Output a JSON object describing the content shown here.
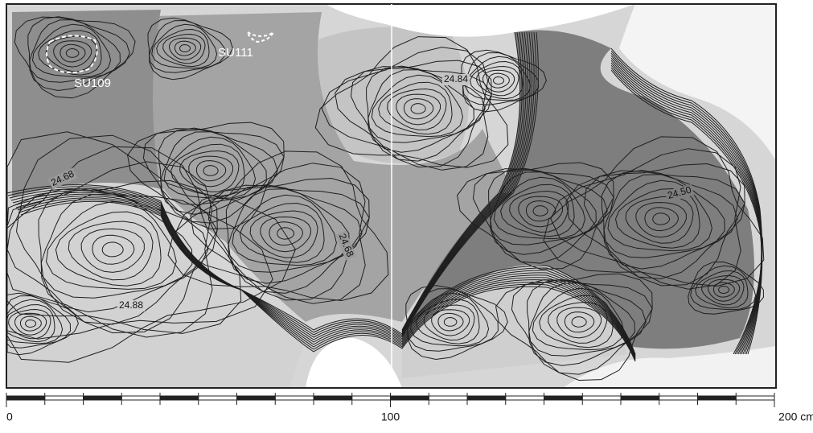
{
  "feature_labels": [
    "SU109",
    "SU111"
  ],
  "elevation_labels": [
    "24.84",
    "24.68",
    "24.68",
    "24.50",
    "24.88"
  ],
  "scale_labels": [
    "0",
    "100",
    "200 cm"
  ]
}
